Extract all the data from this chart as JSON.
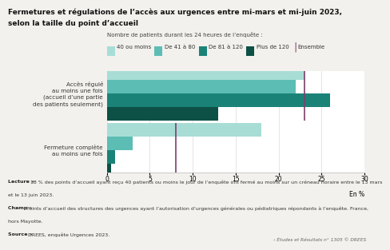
{
  "title_line1": "Fermetures et régulations de l’accès aux urgences entre mi-mars et mi-juin 2023,",
  "title_line2": "selon la taille du point d’accueil",
  "subtitle": "Nombre de patients durant les 24 heures de l’enquête :",
  "legend_labels": [
    "40 ou moins",
    "De 41 à 80",
    "De 81 à 120",
    "Plus de 120",
    "Ensemble"
  ],
  "legend_colors": [
    "#a8ddd6",
    "#5cbdb4",
    "#1b8277",
    "#0d5045",
    "#7b3f6e"
  ],
  "bar_keys": [
    "40 ou moins",
    "De 41 à 80",
    "De 81 à 120",
    "Plus de 120"
  ],
  "bar_colors": [
    "#a8ddd6",
    "#5cbdb4",
    "#1b8277",
    "#0d5045"
  ],
  "categories": [
    "Accès régulé\nau moins une fois\n(accueil d’une partie\ndes patients seulement)",
    "Fermeture complète\nau moins une fois"
  ],
  "bar_data": [
    [
      23,
      22,
      26,
      13
    ],
    [
      18,
      3,
      1,
      0.5
    ]
  ],
  "ensemble_lines": [
    23,
    8
  ],
  "ensemble_color": "#7b3f6e",
  "xlim": [
    0,
    30
  ],
  "xticks": [
    0,
    5,
    10,
    15,
    20,
    25,
    30
  ],
  "xlabel": "En %",
  "bg_color": "#f2f1ed",
  "plot_bg": "#ffffff",
  "footer_bold_words": [
    "Lecture »",
    "Champ »",
    "Source »"
  ],
  "footer_lines": [
    [
      "bold",
      "Lecture » ",
      "normal",
      "18 % des points d’accueil ayant reçu 40 patients ou moins le jour de l’enquête ont fermé au moins sur un créneau horaire entre le 13 mars"
    ],
    [
      "normal",
      "et le 13 juin 2023."
    ],
    [
      "bold",
      "Champ » ",
      "normal",
      "Points d’accueil des structures des urgences ayant l’autorisation d’urgences générales ou pédiatriques répondants à l’enquête. France,"
    ],
    [
      "normal",
      "hors Mayotte."
    ],
    [
      "bold",
      "Source » ",
      "normal",
      "DREES, enquête Urgences 2023."
    ]
  ],
  "watermark": "› Études et Résultats n° 1305 © DREES"
}
